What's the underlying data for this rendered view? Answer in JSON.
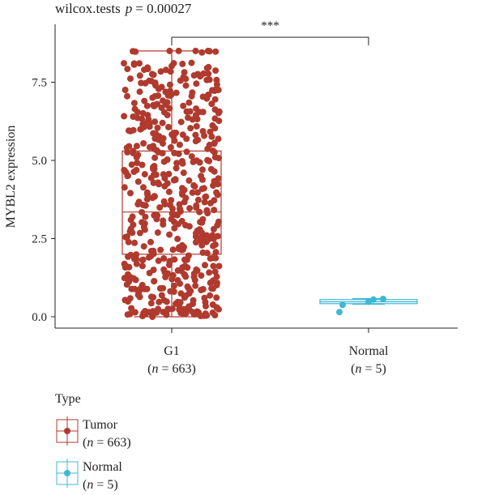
{
  "chart_data": {
    "type": "box",
    "title": "wilcox.tests",
    "p_label": "p",
    "p_value": "= 0.00027",
    "significance": "***",
    "ylabel": "MYBL2 expression",
    "ylim": [
      -0.3,
      9.0
    ],
    "yticks": [
      0.0,
      2.5,
      5.0,
      7.5
    ],
    "ytick_labels": [
      "0.0",
      "2.5",
      "5.0",
      "7.5"
    ],
    "groups": [
      {
        "name": "G1",
        "n_label": "n",
        "n_value": "= 663",
        "n": 663,
        "color": "#b03a2e",
        "box": {
          "min": 0.0,
          "q1": 2.0,
          "median": 3.35,
          "q3": 5.3,
          "max": 8.5
        },
        "points": [
          0.05,
          0.1,
          0.12,
          0.2,
          0.3,
          0.45,
          0.55,
          0.7,
          0.85,
          0.95,
          1.05,
          1.2,
          1.3,
          1.4,
          1.55,
          1.65,
          1.8,
          1.9,
          2.05,
          2.2,
          2.35,
          2.5,
          2.65,
          2.8,
          2.95,
          3.1,
          3.25,
          3.4,
          3.55,
          3.7,
          3.85,
          4.0,
          4.15,
          4.3,
          4.45,
          4.6,
          4.75,
          4.9,
          5.05,
          5.2,
          5.35,
          5.5,
          5.65,
          5.8,
          5.95,
          6.1,
          6.25,
          6.4,
          6.55,
          6.7,
          6.85,
          7.0,
          7.15,
          7.3,
          7.45,
          7.6,
          7.75,
          7.9,
          8.05,
          8.5
        ]
      },
      {
        "name": "Normal",
        "n_label": "n",
        "n_value": "= 5",
        "n": 5,
        "color": "#3fb8d4",
        "box": {
          "min": 0.4,
          "q1": 0.42,
          "median": 0.48,
          "q3": 0.55,
          "max": 0.58
        },
        "points": [
          0.15,
          0.38,
          0.48,
          0.55,
          0.57
        ]
      }
    ],
    "legend": {
      "title": "Type",
      "position": "bottom-left",
      "items": [
        {
          "label": "Tumor",
          "n_label": "n",
          "n_value": "= 663",
          "color": "#b03a2e"
        },
        {
          "label": "Normal",
          "n_label": "n",
          "n_value": "= 5",
          "color": "#3fb8d4"
        }
      ]
    }
  }
}
